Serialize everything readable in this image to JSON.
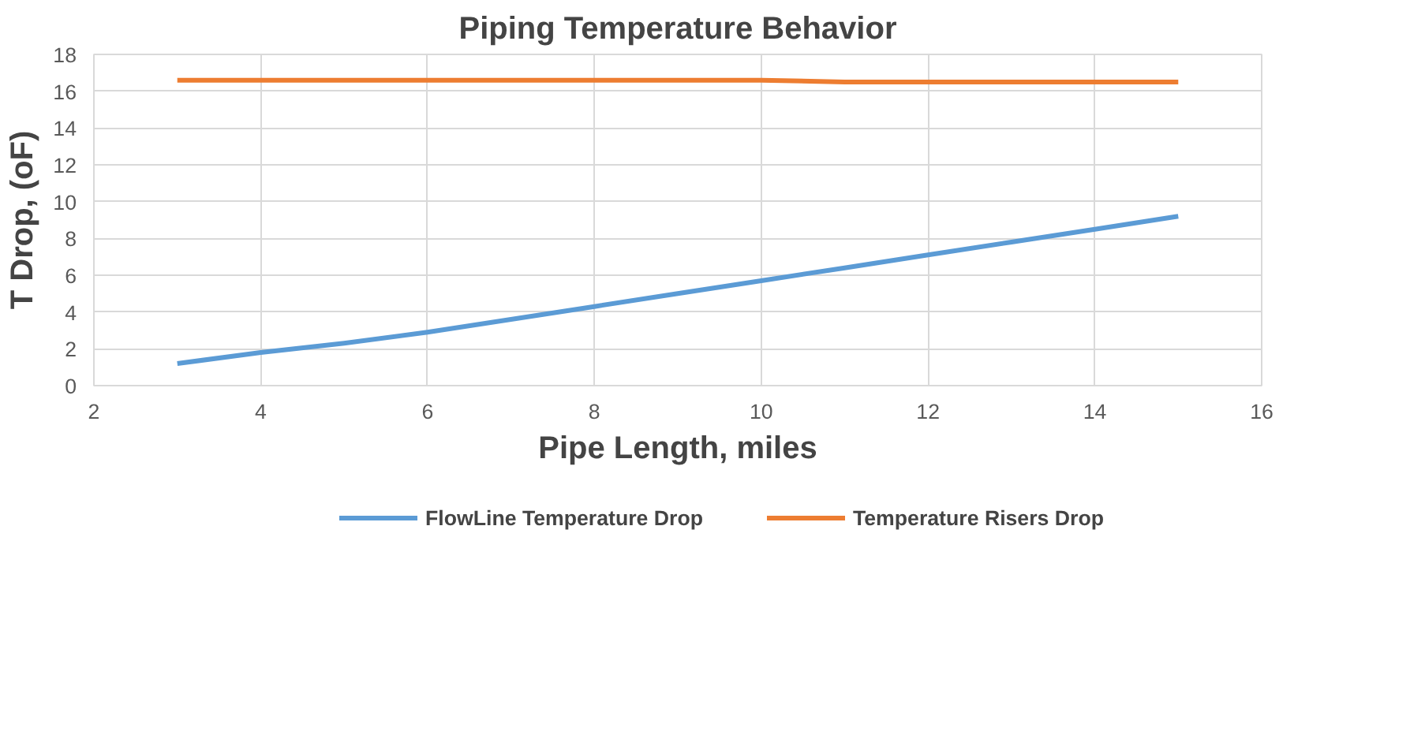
{
  "chart_data": {
    "type": "line",
    "title": "Piping Temperature Behavior",
    "xlabel": "Pipe Length, miles",
    "ylabel": "T Drop, (oF)",
    "x": [
      3,
      4,
      5,
      6,
      7,
      8,
      9,
      10,
      11,
      12,
      13,
      14,
      15
    ],
    "series": [
      {
        "name": "FlowLine Temperature Drop",
        "color": "#5b9bd5",
        "values": [
          1.2,
          1.8,
          2.3,
          2.9,
          3.6,
          4.3,
          5.0,
          5.7,
          6.4,
          7.1,
          7.8,
          8.5,
          9.2
        ]
      },
      {
        "name": "Temperature Risers Drop",
        "color": "#ed7d31",
        "values": [
          16.6,
          16.6,
          16.6,
          16.6,
          16.6,
          16.6,
          16.6,
          16.6,
          16.5,
          16.5,
          16.5,
          16.5,
          16.5
        ]
      }
    ],
    "xlim": [
      2,
      16
    ],
    "xticks": [
      2,
      4,
      6,
      8,
      10,
      12,
      14,
      16
    ],
    "ylim": [
      0,
      18
    ],
    "yticks": [
      0,
      2,
      4,
      6,
      8,
      10,
      12,
      14,
      16,
      18
    ],
    "grid": true,
    "legend": "bottom",
    "marker": "none",
    "line_style": "solid"
  }
}
